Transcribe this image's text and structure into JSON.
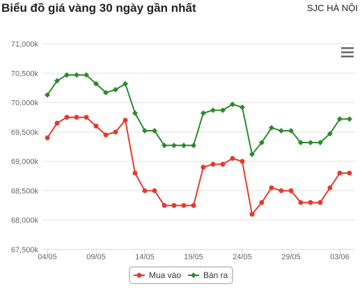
{
  "chart_data": {
    "type": "line",
    "title": "Biểu đồ giá vàng 30 ngày gần nhất",
    "subtitle": "SJC HÀ NỘI",
    "categories": [
      "04/05",
      null,
      null,
      null,
      null,
      "09/05",
      null,
      null,
      null,
      null,
      "14/05",
      null,
      null,
      null,
      null,
      "19/05",
      null,
      null,
      null,
      null,
      "24/05",
      null,
      null,
      null,
      null,
      "29/05",
      null,
      null,
      null,
      null,
      "03/06",
      null
    ],
    "series": [
      {
        "name": "Mua vào",
        "color": "#e53a2b",
        "values": [
          69400,
          69650,
          69750,
          69750,
          69750,
          69600,
          69450,
          69500,
          69700,
          68800,
          68500,
          68500,
          68250,
          68250,
          68250,
          68250,
          68900,
          68950,
          68950,
          69050,
          69000,
          68100,
          68300,
          68550,
          68500,
          68500,
          68300,
          68300,
          68300,
          68550,
          68800,
          68800
        ]
      },
      {
        "name": "Bán ra",
        "color": "#2a8a2a",
        "values": [
          70130,
          70370,
          70470,
          70470,
          70470,
          70320,
          70170,
          70220,
          70320,
          69820,
          69520,
          69520,
          69270,
          69270,
          69270,
          69270,
          69820,
          69870,
          69870,
          69970,
          69920,
          69120,
          69320,
          69570,
          69520,
          69520,
          69320,
          69320,
          69320,
          69470,
          69720,
          69720
        ]
      }
    ],
    "ylim": [
      67500,
      71000
    ],
    "yticks": [
      {
        "value": 67500,
        "label": "67,500k"
      },
      {
        "value": 68000,
        "label": "68,000k"
      },
      {
        "value": 68500,
        "label": "68,500k"
      },
      {
        "value": 69000,
        "label": "69,000k"
      },
      {
        "value": 69500,
        "label": "69,500k"
      },
      {
        "value": 70000,
        "label": "70,000k"
      },
      {
        "value": 70500,
        "label": "70,500k"
      },
      {
        "value": 71000,
        "label": "71,000k"
      }
    ],
    "grid": true
  }
}
